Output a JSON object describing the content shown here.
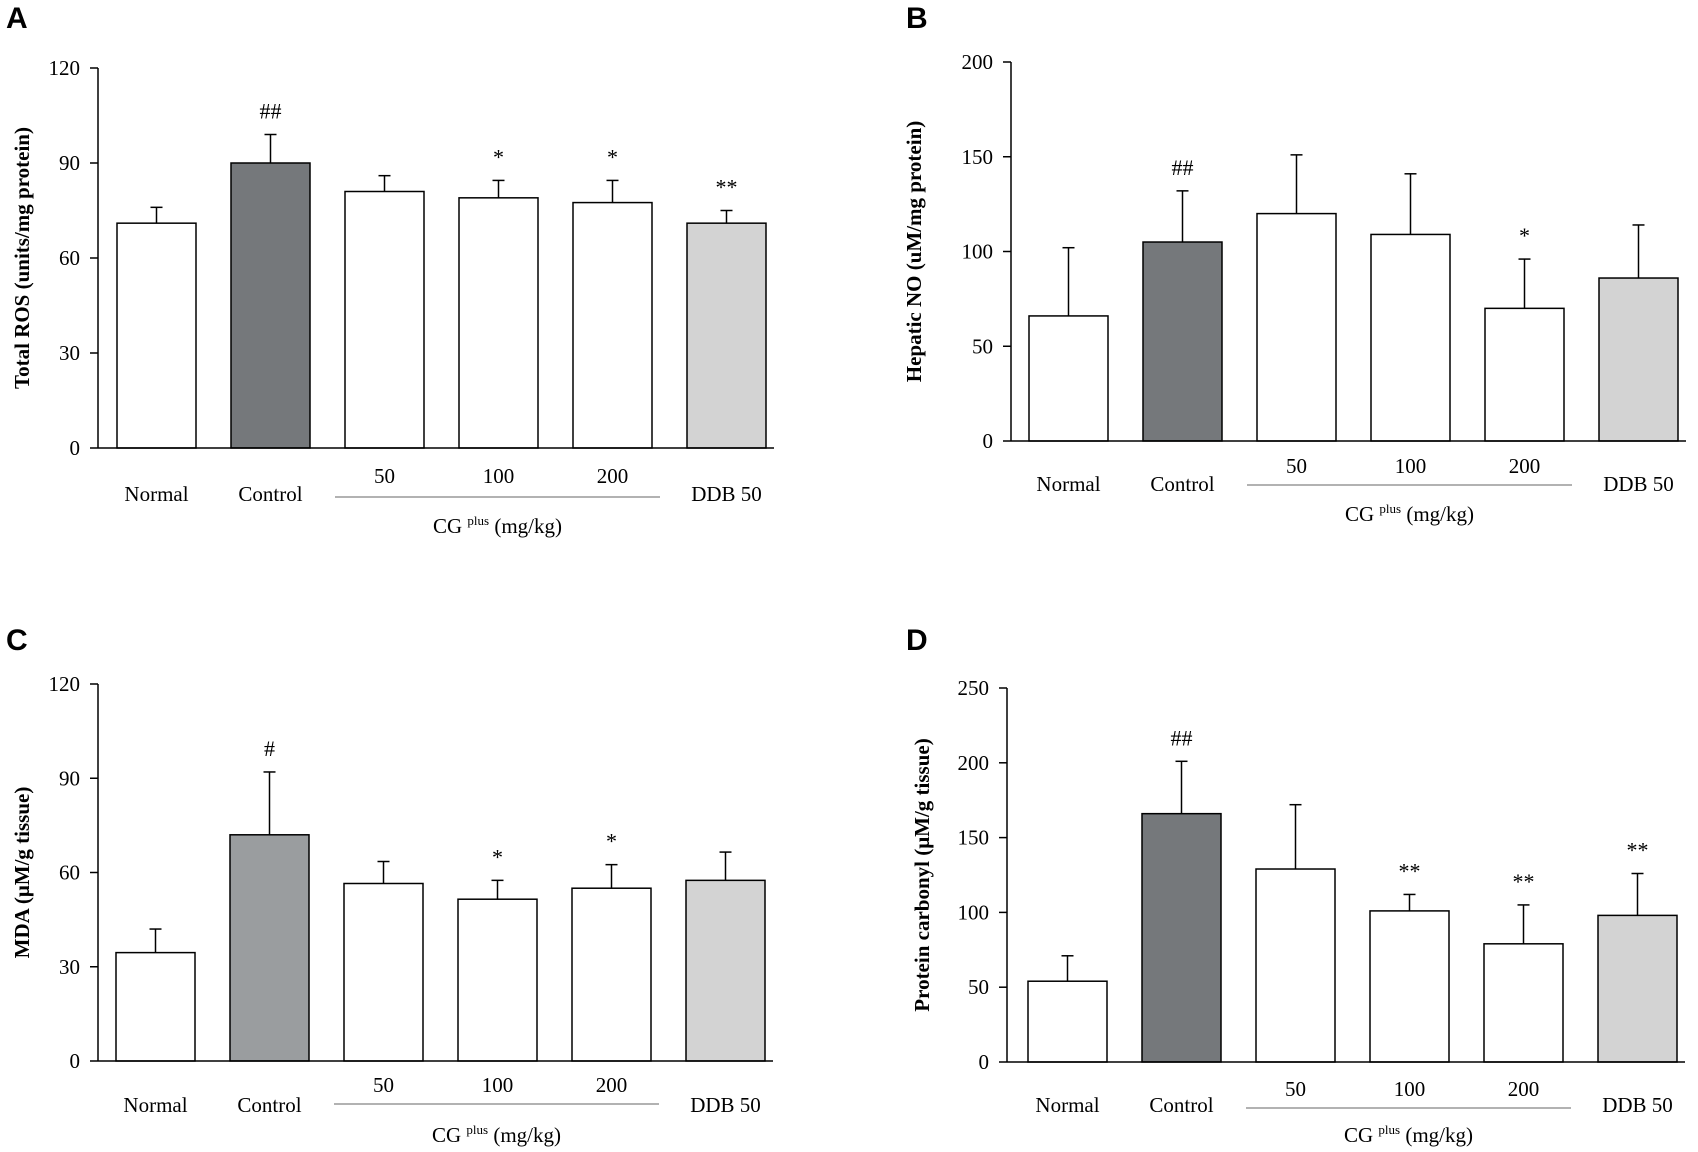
{
  "chart_data": [
    {
      "panel": "A",
      "type": "bar",
      "title": "",
      "ylabel": "Total ROS (units/mg protein)",
      "xlabel": "",
      "ylim": [
        0,
        120
      ],
      "yticks": [
        0,
        30,
        60,
        90,
        120
      ],
      "categories": [
        "Normal",
        "Control",
        "50",
        "100",
        "200",
        "DDB 50"
      ],
      "values": [
        71,
        90,
        81,
        79,
        77.5,
        71
      ],
      "errors": [
        5,
        9,
        5,
        5.5,
        7,
        4
      ],
      "bar_colors": [
        "#ffffff",
        "#75787b",
        "#ffffff",
        "#ffffff",
        "#ffffff",
        "#d3d3d3"
      ],
      "significance": [
        "",
        "##",
        "",
        "*",
        "*",
        "**"
      ],
      "group": {
        "label": "CG",
        "superscript": "plus",
        "unit": "(mg/kg)",
        "from": 2,
        "to": 4
      }
    },
    {
      "panel": "B",
      "type": "bar",
      "title": "",
      "ylabel": "Hepatic NO (uM/mg protein)",
      "xlabel": "",
      "ylim": [
        0,
        200
      ],
      "yticks": [
        0,
        50,
        100,
        150,
        200
      ],
      "categories": [
        "Normal",
        "Control",
        "50",
        "100",
        "200",
        "DDB 50"
      ],
      "values": [
        66,
        105,
        120,
        109,
        70,
        86
      ],
      "errors": [
        36,
        27,
        31,
        32,
        26,
        28
      ],
      "bar_colors": [
        "#ffffff",
        "#75787b",
        "#ffffff",
        "#ffffff",
        "#ffffff",
        "#d3d3d3"
      ],
      "significance": [
        "",
        "##",
        "",
        "",
        "*",
        ""
      ],
      "group": {
        "label": "CG",
        "superscript": "plus",
        "unit": "(mg/kg)",
        "from": 2,
        "to": 4
      }
    },
    {
      "panel": "C",
      "type": "bar",
      "title": "",
      "ylabel": "MDA (μM/g tissue)",
      "xlabel": "",
      "ylim": [
        0,
        120
      ],
      "yticks": [
        0,
        30,
        60,
        90,
        120
      ],
      "categories": [
        "Normal",
        "Control",
        "50",
        "100",
        "200",
        "DDB 50"
      ],
      "values": [
        34.5,
        72,
        56.5,
        51.5,
        55,
        57.5
      ],
      "errors": [
        7.5,
        20,
        7,
        6,
        7.5,
        9
      ],
      "bar_colors": [
        "#ffffff",
        "#9a9d9f",
        "#ffffff",
        "#ffffff",
        "#ffffff",
        "#d3d3d3"
      ],
      "significance": [
        "",
        "#",
        "",
        "*",
        "*",
        ""
      ],
      "group": {
        "label": "CG",
        "superscript": "plus",
        "unit": "(mg/kg)",
        "from": 2,
        "to": 4
      }
    },
    {
      "panel": "D",
      "type": "bar",
      "title": "",
      "ylabel": "Protein carbonyl (μM/g tissue)",
      "xlabel": "",
      "ylim": [
        0,
        250
      ],
      "yticks": [
        0,
        50,
        100,
        150,
        200,
        250
      ],
      "categories": [
        "Normal",
        "Control",
        "50",
        "100",
        "200",
        "DDB 50"
      ],
      "values": [
        54,
        166,
        129,
        101,
        79,
        98
      ],
      "errors": [
        17,
        35,
        43,
        11,
        26,
        28
      ],
      "bar_colors": [
        "#ffffff",
        "#75787b",
        "#ffffff",
        "#ffffff",
        "#ffffff",
        "#d3d3d3"
      ],
      "significance": [
        "",
        "##",
        "",
        "**",
        "**",
        "**"
      ],
      "group": {
        "label": "CG",
        "superscript": "plus",
        "unit": "(mg/kg)",
        "from": 2,
        "to": 4
      }
    }
  ]
}
